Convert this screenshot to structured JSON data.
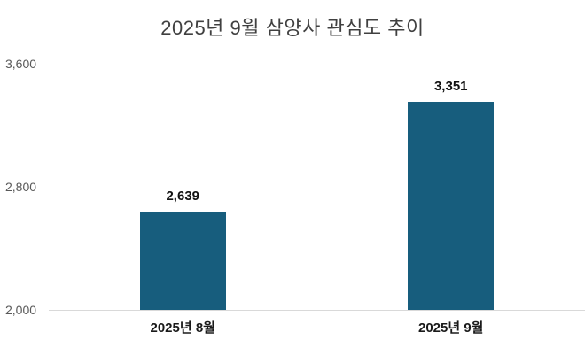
{
  "chart_data": {
    "type": "bar",
    "title": "2025년 9월 삼양사 관심도 추이",
    "categories": [
      "2025년 8월",
      "2025년 9월"
    ],
    "values": [
      2639,
      3351
    ],
    "value_labels": [
      "2,639",
      "3,351"
    ],
    "ylim": [
      2000,
      3600
    ],
    "yticks": [
      2000,
      2800,
      3600
    ],
    "ytick_labels": [
      "2,000",
      "2,800",
      "3,600"
    ],
    "xlabel": "",
    "ylabel": "",
    "grid": false,
    "legend": false,
    "colors": {
      "bar": "#175d7d",
      "title": "#404040",
      "tick_label": "#595959",
      "value_label": "#111111",
      "category_label": "#1a1a1a",
      "baseline": "#d9d9d9",
      "background": "#ffffff"
    }
  }
}
